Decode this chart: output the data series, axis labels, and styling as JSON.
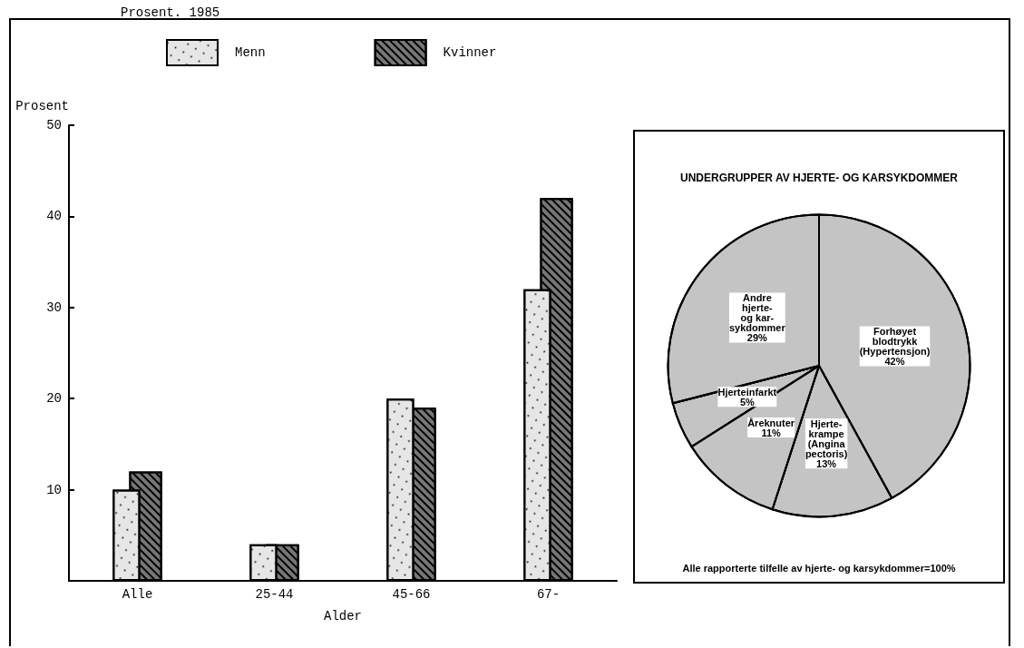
{
  "chart_data": [
    {
      "type": "bar",
      "subtitle": "Prosent. 1985",
      "xlabel": "Alder",
      "ylabel": "Prosent",
      "categories": [
        "Alle",
        "25-44",
        "45-66",
        "67-"
      ],
      "series": [
        {
          "name": "Menn",
          "color": "#e6e6e6",
          "values": [
            10,
            4,
            20,
            32
          ]
        },
        {
          "name": "Kvinner",
          "color": "#777777",
          "values": [
            12,
            4,
            19,
            42
          ]
        }
      ],
      "ylim": [
        0,
        50
      ],
      "yticks": [
        {
          "value": 0,
          "label": null
        },
        10,
        20,
        30,
        40,
        50
      ],
      "grid": false,
      "legend": "top"
    },
    {
      "type": "pie",
      "title": "UNDERGRUPPER AV HJERTE- OG KARSYKDOMMER",
      "categories": [
        "Forhøyet\nblodtrykk\n(Hypertensjon)",
        "Hjerte-\nkrampe\n(Angina\npectoris)",
        "Åreknuter",
        "Hjerteinfarkt",
        "Andre\nhjerte-\nog kar-\nsykdommer"
      ],
      "values": [
        42,
        13,
        11,
        5,
        29
      ],
      "colors": [
        "#c4c4c4",
        "#c4c4c4",
        "#c4c4c4",
        "#c4c4c4",
        "#c4c4c4"
      ],
      "value_labels": [
        "42%",
        "13%",
        "11%",
        "5%",
        "29%"
      ],
      "legend": false,
      "annotations": [
        "Alle rapporterte tilfelle av hjerte- og karsykdommer=100%"
      ]
    }
  ]
}
